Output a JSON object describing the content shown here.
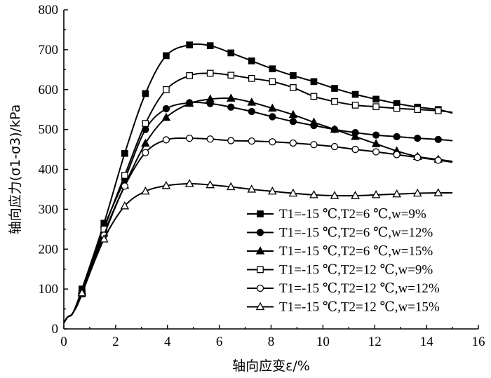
{
  "chart_data": {
    "type": "line",
    "title": "",
    "xlabel": "轴向应变ε/%",
    "ylabel": "轴向应力(σ1-σ3)/kPa",
    "xlim": [
      0,
      16
    ],
    "ylim": [
      0,
      800
    ],
    "x_ticks": [
      "0",
      "2",
      "4",
      "6",
      "8",
      "10",
      "12",
      "14",
      "16"
    ],
    "y_ticks": [
      "0",
      "100",
      "200",
      "300",
      "400",
      "500",
      "600",
      "700",
      "800"
    ],
    "grid": false,
    "legend_position": "bottom-right",
    "series": [
      {
        "name": "T1=-15 ℃,T2=6 ℃,w=9%",
        "marker": "filled-square",
        "line_color": "#000000",
        "points": [
          [
            0,
            15
          ],
          [
            0.15,
            30
          ],
          [
            0.35,
            40
          ],
          [
            0.7,
            100
          ],
          [
            1.55,
            265
          ],
          [
            2.35,
            440
          ],
          [
            3.15,
            590
          ],
          [
            3.95,
            685
          ],
          [
            4.85,
            712
          ],
          [
            5.65,
            710
          ],
          [
            6.45,
            692
          ],
          [
            7.25,
            672
          ],
          [
            8.05,
            652
          ],
          [
            8.85,
            635
          ],
          [
            9.65,
            620
          ],
          [
            10.45,
            603
          ],
          [
            11.25,
            588
          ],
          [
            12.05,
            576
          ],
          [
            12.85,
            565
          ],
          [
            13.65,
            556
          ],
          [
            14.45,
            550
          ],
          [
            15,
            541
          ]
        ]
      },
      {
        "name": "T1=-15 ℃,T2=6 ℃,w=12%",
        "marker": "filled-circle",
        "line_color": "#000000",
        "points": [
          [
            0,
            15
          ],
          [
            0.15,
            30
          ],
          [
            0.35,
            40
          ],
          [
            0.7,
            95
          ],
          [
            1.55,
            255
          ],
          [
            2.35,
            375
          ],
          [
            3.15,
            500
          ],
          [
            3.95,
            552
          ],
          [
            4.85,
            567
          ],
          [
            5.65,
            565
          ],
          [
            6.45,
            556
          ],
          [
            7.25,
            545
          ],
          [
            8.05,
            532
          ],
          [
            8.85,
            520
          ],
          [
            9.65,
            510
          ],
          [
            10.45,
            500
          ],
          [
            11.25,
            492
          ],
          [
            12.05,
            486
          ],
          [
            12.85,
            482
          ],
          [
            13.65,
            478
          ],
          [
            14.45,
            475
          ],
          [
            15,
            472
          ]
        ]
      },
      {
        "name": "T1=-15 ℃,T2=6 ℃,w=15%",
        "marker": "filled-triangle",
        "line_color": "#000000",
        "points": [
          [
            0,
            15
          ],
          [
            0.15,
            30
          ],
          [
            0.35,
            40
          ],
          [
            0.7,
            95
          ],
          [
            1.55,
            240
          ],
          [
            2.35,
            360
          ],
          [
            3.15,
            465
          ],
          [
            3.95,
            530
          ],
          [
            4.85,
            565
          ],
          [
            5.65,
            576
          ],
          [
            6.45,
            578
          ],
          [
            7.25,
            568
          ],
          [
            8.05,
            553
          ],
          [
            8.85,
            537
          ],
          [
            9.65,
            518
          ],
          [
            10.45,
            500
          ],
          [
            11.25,
            482
          ],
          [
            12.05,
            464
          ],
          [
            12.85,
            446
          ],
          [
            13.65,
            432
          ],
          [
            14.45,
            425
          ],
          [
            15,
            420
          ]
        ]
      },
      {
        "name": "T1=-15 ℃,T2=12 ℃,w=9%",
        "marker": "open-square",
        "line_color": "#000000",
        "points": [
          [
            0,
            15
          ],
          [
            0.15,
            30
          ],
          [
            0.35,
            40
          ],
          [
            0.7,
            88
          ],
          [
            1.55,
            250
          ],
          [
            2.35,
            385
          ],
          [
            3.15,
            515
          ],
          [
            3.95,
            600
          ],
          [
            4.85,
            635
          ],
          [
            5.65,
            641
          ],
          [
            6.45,
            636
          ],
          [
            7.25,
            628
          ],
          [
            8.05,
            620
          ],
          [
            8.85,
            605
          ],
          [
            9.65,
            583
          ],
          [
            10.45,
            570
          ],
          [
            11.25,
            561
          ],
          [
            12.05,
            557
          ],
          [
            12.85,
            553
          ],
          [
            13.65,
            550
          ],
          [
            14.45,
            547
          ],
          [
            15,
            543
          ]
        ]
      },
      {
        "name": "T1=-15 ℃,T2=12 ℃,w=12%",
        "marker": "open-circle",
        "line_color": "#000000",
        "points": [
          [
            0,
            15
          ],
          [
            0.15,
            30
          ],
          [
            0.35,
            40
          ],
          [
            0.7,
            88
          ],
          [
            1.55,
            235
          ],
          [
            2.35,
            358
          ],
          [
            3.15,
            442
          ],
          [
            3.95,
            474
          ],
          [
            4.85,
            478
          ],
          [
            5.65,
            476
          ],
          [
            6.45,
            472
          ],
          [
            7.25,
            471
          ],
          [
            8.05,
            469
          ],
          [
            8.85,
            466
          ],
          [
            9.65,
            462
          ],
          [
            10.45,
            457
          ],
          [
            11.25,
            450
          ],
          [
            12.05,
            444
          ],
          [
            12.85,
            437
          ],
          [
            13.65,
            430
          ],
          [
            14.45,
            423
          ],
          [
            15,
            418
          ]
        ]
      },
      {
        "name": "T1=-15 ℃,T2=12 ℃,w=15%",
        "marker": "open-triangle",
        "line_color": "#000000",
        "points": [
          [
            0,
            15
          ],
          [
            0.15,
            30
          ],
          [
            0.35,
            40
          ],
          [
            0.7,
            90
          ],
          [
            1.55,
            225
          ],
          [
            2.35,
            308
          ],
          [
            3.15,
            345
          ],
          [
            3.95,
            359
          ],
          [
            4.85,
            364
          ],
          [
            5.65,
            361
          ],
          [
            6.45,
            356
          ],
          [
            7.25,
            350
          ],
          [
            8.05,
            345
          ],
          [
            8.85,
            340
          ],
          [
            9.65,
            336
          ],
          [
            10.45,
            334
          ],
          [
            11.25,
            334
          ],
          [
            12.05,
            336
          ],
          [
            12.85,
            338
          ],
          [
            13.65,
            340
          ],
          [
            14.45,
            341
          ],
          [
            15,
            341
          ]
        ]
      }
    ]
  }
}
